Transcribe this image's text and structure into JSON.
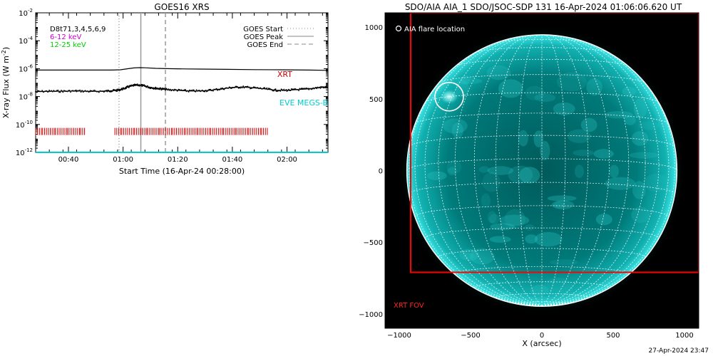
{
  "chart_data": [
    {
      "type": "line",
      "title": "GOES16 XRS",
      "xlabel": "Start Time (16-Apr-24 00:28:00)",
      "ylabel": "X-ray Flux (W m^-2)",
      "ylabel_parts": {
        "main": "X-ray Flux (W m",
        "sup": "-2",
        "close": ")"
      },
      "y_scale": "log",
      "ylim_exp": [
        -12,
        -2
      ],
      "xlim_minutes": [
        0,
        107
      ],
      "y_ticks": [
        {
          "exp": -12,
          "label": "10",
          "sup": "-12"
        },
        {
          "exp": -10,
          "label": "10",
          "sup": "-10"
        },
        {
          "exp": -8,
          "label": "10",
          "sup": "-8"
        },
        {
          "exp": -6,
          "label": "10",
          "sup": "-6"
        },
        {
          "exp": -4,
          "label": "10",
          "sup": "-4"
        },
        {
          "exp": -2,
          "label": "10",
          "sup": "-2"
        }
      ],
      "x_ticks": [
        {
          "minutes": 12,
          "label": "00:40"
        },
        {
          "minutes": 32,
          "label": "01:00"
        },
        {
          "minutes": 52,
          "label": "01:20"
        },
        {
          "minutes": 72,
          "label": "01:40"
        },
        {
          "minutes": 92,
          "label": "02:00"
        }
      ],
      "info_lines": [
        {
          "text": "D8t71,3,4,5,6,9",
          "color": "#000000"
        },
        {
          "text": "6-12 keV",
          "color": "#cc00cc"
        },
        {
          "text": "12-25 keV",
          "color": "#00cc00"
        }
      ],
      "legend": {
        "position": "top-right",
        "items": [
          {
            "label": "GOES Start",
            "style": "dotted"
          },
          {
            "label": "GOES Peak",
            "style": "solid"
          },
          {
            "label": "GOES End",
            "style": "dashed"
          }
        ]
      },
      "event_lines": [
        {
          "name": "GOES Start",
          "minutes": 30.5,
          "style": "dotted"
        },
        {
          "name": "GOES Peak",
          "minutes": 38.5,
          "style": "solid"
        },
        {
          "name": "GOES End",
          "minutes": 47.5,
          "style": "dashed"
        }
      ],
      "series": [
        {
          "name": "",
          "style": "line",
          "x_minutes": [
            0,
            10,
            20,
            28,
            31,
            34,
            36,
            38,
            40,
            44,
            48,
            55,
            60,
            70,
            80,
            90,
            100,
            107
          ],
          "y_exp": [
            -6.1,
            -6.1,
            -6.1,
            -6.1,
            -6.08,
            -6.0,
            -5.95,
            -5.93,
            -5.94,
            -5.98,
            -6.0,
            -6.02,
            -6.03,
            -6.05,
            -6.07,
            -6.08,
            -6.1,
            -6.12
          ]
        },
        {
          "name": "",
          "style": "noisy-line",
          "x_minutes": [
            0,
            5,
            10,
            15,
            20,
            25,
            28,
            30,
            32,
            34,
            36,
            38,
            40,
            42,
            44,
            46,
            48,
            52,
            56,
            60,
            64,
            68,
            72,
            76,
            80,
            84,
            88,
            92,
            96,
            100,
            104,
            107
          ],
          "y_exp": [
            -7.65,
            -7.62,
            -7.62,
            -7.6,
            -7.63,
            -7.62,
            -7.58,
            -7.55,
            -7.45,
            -7.3,
            -7.2,
            -7.18,
            -7.25,
            -7.35,
            -7.4,
            -7.45,
            -7.5,
            -7.55,
            -7.6,
            -7.6,
            -7.55,
            -7.45,
            -7.35,
            -7.32,
            -7.38,
            -7.45,
            -7.55,
            -7.55,
            -7.5,
            -7.45,
            -7.35,
            -7.32
          ]
        },
        {
          "name": "XRT",
          "style": "ticks",
          "color": "#cc0000",
          "y_exp": -10.5,
          "segments_minutes": [
            [
              0,
              18
            ],
            [
              29,
              85.5
            ]
          ]
        },
        {
          "name": "EVE MEGS-B",
          "style": "line",
          "color": "#00cccc",
          "x_minutes": [
            0,
            107
          ],
          "y_exp": [
            -12.0,
            -12.0
          ]
        }
      ],
      "labels": [
        {
          "text": "XRT",
          "color": "#cc0000"
        },
        {
          "text": "EVE MEGS-B",
          "color": "#00cccc"
        }
      ]
    },
    {
      "type": "scatter",
      "title": "SDO/AIA AIA_1 SDO/JSOC-SDP 131 16-Apr-2024 01:06:06.620 UT",
      "xlabel": "X (arcsec)",
      "ylabel": "",
      "xlim": [
        -1100,
        1100
      ],
      "ylim": [
        -1100,
        1100
      ],
      "x_ticks": [
        -1000,
        -500,
        0,
        500,
        1000
      ],
      "y_ticks": [
        -1000,
        -500,
        0,
        500,
        1000
      ],
      "solar_radius_arcsec": 947,
      "grid_spacing_deg": 10,
      "disk_color": "#00dede",
      "background_color": "#000000",
      "grid_color": "#ffffff",
      "flare": {
        "label": "AIA flare location",
        "x": -650,
        "y": 515
      },
      "xrt_fov": {
        "label": "XRT FOV",
        "color": "#ff0000",
        "x_range": [
          -920,
          1100
        ],
        "y_range": [
          -710,
          1100
        ]
      }
    }
  ],
  "footer": {
    "stamp": "27-Apr-2024 23:47"
  }
}
